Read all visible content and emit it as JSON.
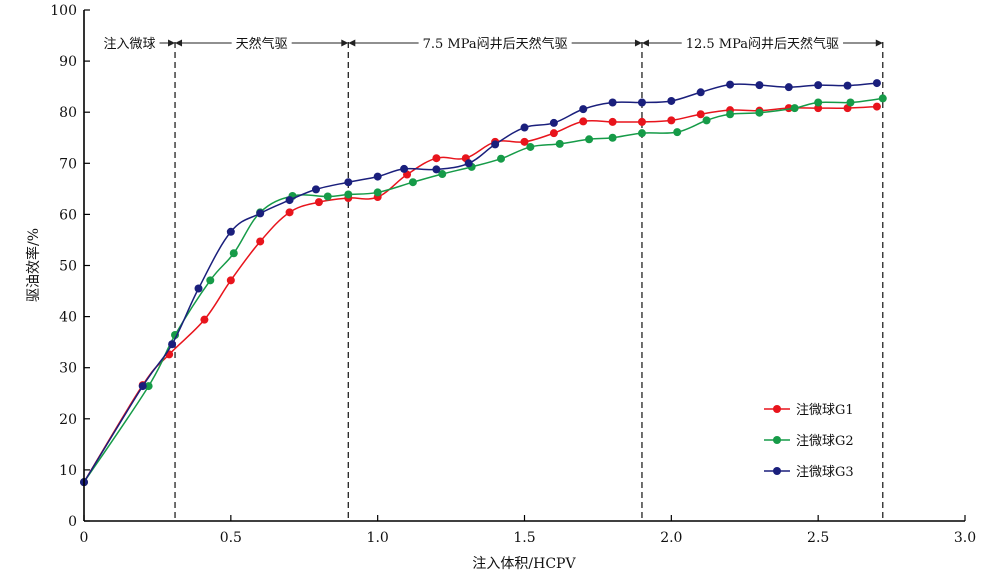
{
  "chart_data": {
    "type": "line",
    "xlabel": "注入体积/HCPV",
    "ylabel": "驱油效率/%",
    "xlim": [
      0,
      3.0
    ],
    "ylim": [
      0,
      100
    ],
    "x_ticks": [
      "0",
      "0.5",
      "1.0",
      "1.5",
      "2.0",
      "2.5",
      "3.0"
    ],
    "y_ticks": [
      "0",
      "10",
      "20",
      "30",
      "40",
      "50",
      "60",
      "70",
      "80",
      "90",
      "100"
    ],
    "legend_position": "bottom-right",
    "phase_boundaries": [
      0.31,
      0.9,
      1.9,
      2.72
    ],
    "phases": [
      {
        "label": "注入微球",
        "from": 0,
        "to": 0.31
      },
      {
        "label": "天然气驱",
        "from": 0.31,
        "to": 0.9
      },
      {
        "label": "7.5 MPa闷井后天然气驱",
        "from": 0.9,
        "to": 1.9
      },
      {
        "label": "12.5 MPa闷井后天然气驱",
        "from": 1.9,
        "to": 2.72
      }
    ],
    "series": [
      {
        "name": "注微球G1",
        "color": "#e8141c",
        "points": [
          [
            0,
            7.6
          ],
          [
            0.2,
            26.6
          ],
          [
            0.29,
            32.6
          ],
          [
            0.41,
            39.4
          ],
          [
            0.5,
            47.1
          ],
          [
            0.6,
            54.7
          ],
          [
            0.7,
            60.4
          ],
          [
            0.8,
            62.4
          ],
          [
            0.9,
            63.2
          ],
          [
            1.0,
            63.4
          ],
          [
            1.1,
            67.8
          ],
          [
            1.2,
            71.0
          ],
          [
            1.3,
            71.0
          ],
          [
            1.4,
            74.2
          ],
          [
            1.5,
            74.2
          ],
          [
            1.6,
            75.9
          ],
          [
            1.7,
            78.2
          ],
          [
            1.8,
            78.1
          ],
          [
            1.9,
            78.1
          ],
          [
            2.0,
            78.4
          ],
          [
            2.1,
            79.6
          ],
          [
            2.2,
            80.4
          ],
          [
            2.3,
            80.3
          ],
          [
            2.4,
            80.8
          ],
          [
            2.5,
            80.8
          ],
          [
            2.6,
            80.8
          ],
          [
            2.7,
            81.1
          ]
        ]
      },
      {
        "name": "注微球G2",
        "color": "#169b48",
        "points": [
          [
            0,
            7.6
          ],
          [
            0.22,
            26.4
          ],
          [
            0.31,
            36.4
          ],
          [
            0.43,
            47.1
          ],
          [
            0.51,
            52.4
          ],
          [
            0.6,
            60.4
          ],
          [
            0.71,
            63.6
          ],
          [
            0.83,
            63.5
          ],
          [
            0.9,
            63.9
          ],
          [
            1.0,
            64.3
          ],
          [
            1.12,
            66.3
          ],
          [
            1.22,
            67.9
          ],
          [
            1.32,
            69.3
          ],
          [
            1.42,
            70.9
          ],
          [
            1.52,
            73.2
          ],
          [
            1.62,
            73.8
          ],
          [
            1.72,
            74.7
          ],
          [
            1.8,
            75.0
          ],
          [
            1.9,
            75.9
          ],
          [
            2.02,
            76.1
          ],
          [
            2.12,
            78.4
          ],
          [
            2.2,
            79.6
          ],
          [
            2.3,
            79.9
          ],
          [
            2.42,
            80.8
          ],
          [
            2.5,
            81.9
          ],
          [
            2.61,
            81.9
          ],
          [
            2.72,
            82.7
          ]
        ]
      },
      {
        "name": "注微球G3",
        "color": "#1a1f7c",
        "points": [
          [
            0,
            7.6
          ],
          [
            0.2,
            26.4
          ],
          [
            0.3,
            34.6
          ],
          [
            0.39,
            45.5
          ],
          [
            0.5,
            56.6
          ],
          [
            0.6,
            60.2
          ],
          [
            0.7,
            62.8
          ],
          [
            0.79,
            64.9
          ],
          [
            0.9,
            66.3
          ],
          [
            1.0,
            67.4
          ],
          [
            1.09,
            68.9
          ],
          [
            1.2,
            68.8
          ],
          [
            1.31,
            70.0
          ],
          [
            1.4,
            73.7
          ],
          [
            1.5,
            77.0
          ],
          [
            1.6,
            77.9
          ],
          [
            1.7,
            80.6
          ],
          [
            1.8,
            81.9
          ],
          [
            1.9,
            81.9
          ],
          [
            2.0,
            82.2
          ],
          [
            2.1,
            83.9
          ],
          [
            2.2,
            85.4
          ],
          [
            2.3,
            85.3
          ],
          [
            2.4,
            84.9
          ],
          [
            2.5,
            85.3
          ],
          [
            2.6,
            85.2
          ],
          [
            2.7,
            85.7
          ]
        ]
      }
    ]
  }
}
